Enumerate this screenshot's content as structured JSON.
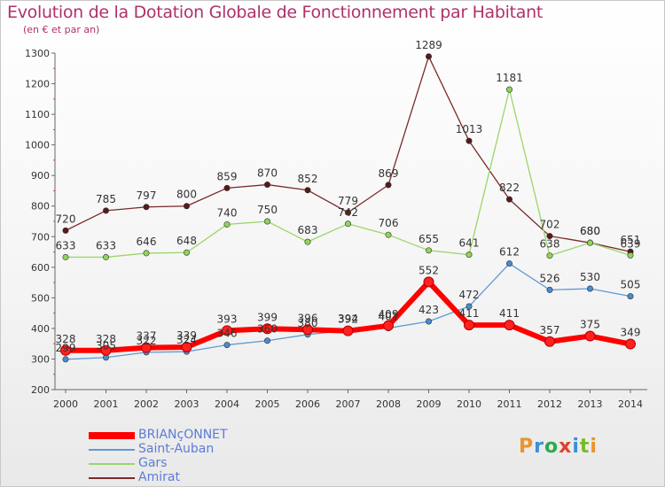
{
  "title": "Evolution de la Dotation Globale de Fonctionnement par Habitant",
  "subtitle": "(en € et par an)",
  "logo": {
    "text": "Proxiti",
    "colors": [
      "#e8952a",
      "#3a8fd8",
      "#2fa84f",
      "#e0402f",
      "#3a8fd8",
      "#7ab82a",
      "#e8952a"
    ]
  },
  "chart_data": {
    "type": "line",
    "title": "Evolution de la Dotation Globale de Fonctionnement par Habitant",
    "subtitle": "(en € et par an)",
    "x": [
      "2000",
      "2001",
      "2002",
      "2003",
      "2004",
      "2005",
      "2006",
      "2007",
      "2008",
      "2009",
      "2010",
      "2011",
      "2012",
      "2013",
      "2014"
    ],
    "ylim": [
      200,
      1300
    ],
    "yticks": [
      200,
      300,
      400,
      500,
      600,
      700,
      800,
      900,
      1000,
      1100,
      1200,
      1300
    ],
    "grid": false,
    "legend_position": "bottom-left",
    "series": [
      {
        "name": "Amirat",
        "color": "#7a2a2a",
        "marker": "#5a1818",
        "width": 1.3,
        "values": [
          720,
          785,
          797,
          800,
          859,
          870,
          852,
          779,
          869,
          1289,
          1013,
          822,
          702,
          680,
          651
        ]
      },
      {
        "name": "Gars",
        "color": "#9ad66a",
        "marker": "#8fd45a",
        "width": 1.3,
        "values": [
          633,
          633,
          646,
          648,
          740,
          750,
          683,
          742,
          706,
          655,
          641,
          1181,
          638,
          680,
          639
        ]
      },
      {
        "name": "Saint-Auban",
        "color": "#5b9bd5",
        "marker": "#4a8ad0",
        "width": 1.3,
        "values": [
          299,
          305,
          322,
          324,
          346,
          360,
          380,
          394,
          401,
          423,
          472,
          612,
          526,
          530,
          505
        ]
      },
      {
        "name": "BRIANçONNET",
        "color": "#ff0000",
        "marker": "#ff2020",
        "width": 6,
        "values": [
          328,
          328,
          337,
          339,
          393,
          399,
          396,
          392,
          409,
          552,
          411,
          411,
          357,
          375,
          349
        ]
      }
    ],
    "legend_order": [
      "BRIANçONNET",
      "Saint-Auban",
      "Gars",
      "Amirat"
    ]
  }
}
